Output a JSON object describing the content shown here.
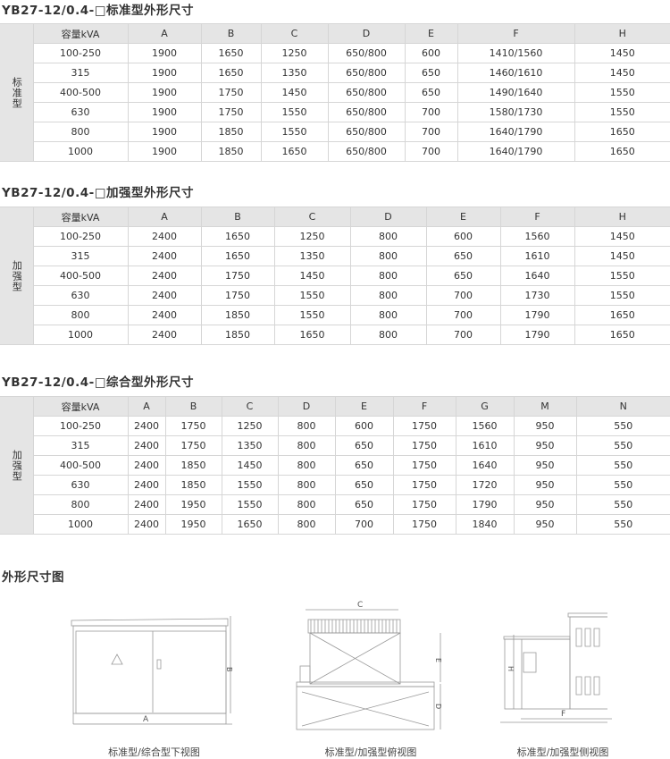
{
  "tables": [
    {
      "title": "YB27-12/0.4-□标准型外形尺寸",
      "side_label": "标准型",
      "headers": [
        "容量kVA",
        "A",
        "B",
        "C",
        "D",
        "E",
        "F",
        "H"
      ],
      "rows": [
        [
          "100-250",
          "1900",
          "1650",
          "1250",
          "650/800",
          "600",
          "1410/1560",
          "1450"
        ],
        [
          "315",
          "1900",
          "1650",
          "1350",
          "650/800",
          "650",
          "1460/1610",
          "1450"
        ],
        [
          "400-500",
          "1900",
          "1750",
          "1450",
          "650/800",
          "650",
          "1490/1640",
          "1550"
        ],
        [
          "630",
          "1900",
          "1750",
          "1550",
          "650/800",
          "700",
          "1580/1730",
          "1550"
        ],
        [
          "800",
          "1900",
          "1850",
          "1550",
          "650/800",
          "700",
          "1640/1790",
          "1650"
        ],
        [
          "1000",
          "1900",
          "1850",
          "1650",
          "650/800",
          "700",
          "1640/1790",
          "1650"
        ]
      ]
    },
    {
      "title": "YB27-12/0.4-□加强型外形尺寸",
      "side_label": "加强型",
      "headers": [
        "容量kVA",
        "A",
        "B",
        "C",
        "D",
        "E",
        "F",
        "H"
      ],
      "rows": [
        [
          "100-250",
          "2400",
          "1650",
          "1250",
          "800",
          "600",
          "1560",
          "1450"
        ],
        [
          "315",
          "2400",
          "1650",
          "1350",
          "800",
          "650",
          "1610",
          "1450"
        ],
        [
          "400-500",
          "2400",
          "1750",
          "1450",
          "800",
          "650",
          "1640",
          "1550"
        ],
        [
          "630",
          "2400",
          "1750",
          "1550",
          "800",
          "700",
          "1730",
          "1550"
        ],
        [
          "800",
          "2400",
          "1850",
          "1550",
          "800",
          "700",
          "1790",
          "1650"
        ],
        [
          "1000",
          "2400",
          "1850",
          "1650",
          "800",
          "700",
          "1790",
          "1650"
        ]
      ]
    },
    {
      "title": "YB27-12/0.4-□综合型外形尺寸",
      "side_label": "加强型",
      "headers": [
        "容量kVA",
        "A",
        "B",
        "C",
        "D",
        "E",
        "F",
        "G",
        "M",
        "N"
      ],
      "rows": [
        [
          "100-250",
          "2400",
          "1750",
          "1250",
          "800",
          "600",
          "1750",
          "1560",
          "950",
          "550"
        ],
        [
          "315",
          "2400",
          "1750",
          "1350",
          "800",
          "650",
          "1750",
          "1610",
          "950",
          "550"
        ],
        [
          "400-500",
          "2400",
          "1850",
          "1450",
          "800",
          "650",
          "1750",
          "1640",
          "950",
          "550"
        ],
        [
          "630",
          "2400",
          "1850",
          "1550",
          "800",
          "650",
          "1750",
          "1720",
          "950",
          "550"
        ],
        [
          "800",
          "2400",
          "1950",
          "1550",
          "800",
          "650",
          "1750",
          "1790",
          "950",
          "550"
        ],
        [
          "1000",
          "2400",
          "1950",
          "1650",
          "800",
          "700",
          "1750",
          "1840",
          "950",
          "550"
        ]
      ]
    }
  ],
  "drawings": {
    "title": "外形尺寸图",
    "front": {
      "caption": "标准型/综合型下视图",
      "labels": {
        "width": "A",
        "height": "B"
      }
    },
    "top": {
      "caption": "标准型/加强型俯视图",
      "labels": {
        "width": "C",
        "upper": "E",
        "lower": "D"
      }
    },
    "side": {
      "caption": "标准型/加强型侧视图",
      "labels": {
        "width": "F",
        "height": "H"
      }
    }
  }
}
